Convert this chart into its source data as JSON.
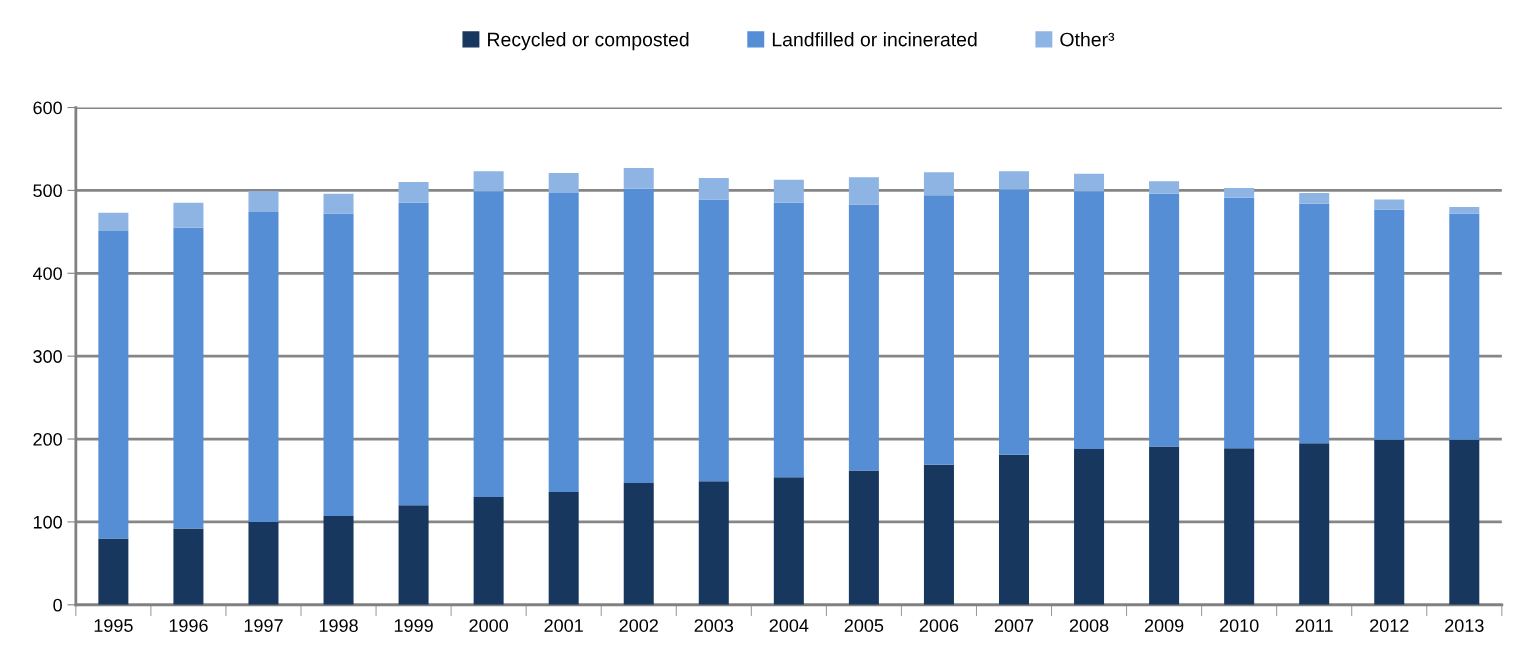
{
  "chart_data": {
    "type": "bar",
    "stacked": true,
    "categories": [
      "1995",
      "1996",
      "1997",
      "1998",
      "1999",
      "2000",
      "2001",
      "2002",
      "2003",
      "2004",
      "2005",
      "2006",
      "2007",
      "2008",
      "2009",
      "2010",
      "2011",
      "2012",
      "2013"
    ],
    "series": [
      {
        "name": "Recycled or composted",
        "color": "#17375e",
        "values": [
          80,
          92,
          100,
          107,
          120,
          130,
          136,
          147,
          149,
          154,
          162,
          169,
          181,
          188,
          191,
          189,
          195,
          199,
          199
        ]
      },
      {
        "name": "Landfilled or incinerated",
        "color": "#558ed5",
        "values": [
          371,
          363,
          374,
          365,
          365,
          369,
          361,
          355,
          340,
          331,
          321,
          325,
          320,
          311,
          305,
          302,
          289,
          278,
          273
        ]
      },
      {
        "name": "Other³",
        "color": "#8eb4e3",
        "values": [
          22,
          30,
          25,
          24,
          25,
          24,
          24,
          25,
          26,
          28,
          33,
          28,
          22,
          21,
          15,
          12,
          13,
          12,
          8
        ]
      }
    ],
    "ylim": [
      0,
      600
    ],
    "yticks": [
      0,
      100,
      200,
      300,
      400,
      500,
      600
    ],
    "grid": "y",
    "legend": "top"
  }
}
